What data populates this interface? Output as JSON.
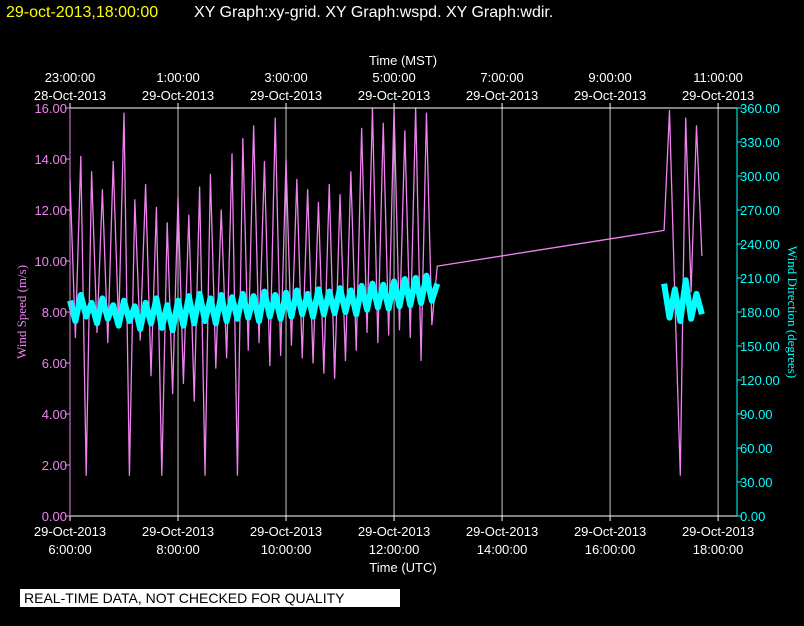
{
  "header": {
    "timestamp": "29-oct-2013,18:00:00",
    "graphs": "XY Graph:xy-grid.  XY Graph:wspd.  XY Graph:wdir."
  },
  "footer": "REAL-TIME DATA, NOT CHECKED FOR QUALITY",
  "chart_data": {
    "type": "line",
    "x_label": "Time (UTC)",
    "x2_label": "Time (MST)",
    "y_label": "Wind Speed (m/s)",
    "y2_label": "Wind Direction (degrees)",
    "xlim": [
      6,
      18.35
    ],
    "xticks": [
      {
        "value": 6,
        "label": [
          "29-Oct-2013",
          "6:00:00"
        ]
      },
      {
        "value": 8,
        "label": [
          "29-Oct-2013",
          "8:00:00"
        ]
      },
      {
        "value": 10,
        "label": [
          "29-Oct-2013",
          "10:00:00"
        ]
      },
      {
        "value": 12,
        "label": [
          "29-Oct-2013",
          "12:00:00"
        ]
      },
      {
        "value": 14,
        "label": [
          "29-Oct-2013",
          "14:00:00"
        ]
      },
      {
        "value": 16,
        "label": [
          "29-Oct-2013",
          "16:00:00"
        ]
      },
      {
        "value": 18,
        "label": [
          "29-Oct-2013",
          "18:00:00"
        ]
      }
    ],
    "x2ticks": [
      {
        "value": 6,
        "label": [
          "23:00:00",
          "28-Oct-2013"
        ]
      },
      {
        "value": 8,
        "label": [
          "1:00:00",
          "29-Oct-2013"
        ]
      },
      {
        "value": 10,
        "label": [
          "3:00:00",
          "29-Oct-2013"
        ]
      },
      {
        "value": 12,
        "label": [
          "5:00:00",
          "29-Oct-2013"
        ]
      },
      {
        "value": 14,
        "label": [
          "7:00:00",
          "29-Oct-2013"
        ]
      },
      {
        "value": 16,
        "label": [
          "9:00:00",
          "29-Oct-2013"
        ]
      },
      {
        "value": 18,
        "label": [
          "11:00:00",
          "29-Oct-2013"
        ]
      }
    ],
    "ylim": [
      0,
      16
    ],
    "yticks": [
      {
        "value": 0,
        "label": "0.00"
      },
      {
        "value": 2,
        "label": "2.00"
      },
      {
        "value": 4,
        "label": "4.00"
      },
      {
        "value": 6,
        "label": "6.00"
      },
      {
        "value": 8,
        "label": "8.00"
      },
      {
        "value": 10,
        "label": "10.00"
      },
      {
        "value": 12,
        "label": "12.00"
      },
      {
        "value": 14,
        "label": "14.00"
      },
      {
        "value": 16,
        "label": "16.00"
      }
    ],
    "y2lim": [
      0,
      360
    ],
    "y2ticks": [
      {
        "value": 0,
        "label": "0.00"
      },
      {
        "value": 30,
        "label": "30.00"
      },
      {
        "value": 60,
        "label": "60.00"
      },
      {
        "value": 90,
        "label": "90.00"
      },
      {
        "value": 120,
        "label": "120.00"
      },
      {
        "value": 150,
        "label": "150.00"
      },
      {
        "value": 180,
        "label": "180.00"
      },
      {
        "value": 210,
        "label": "210.00"
      },
      {
        "value": 240,
        "label": "240.00"
      },
      {
        "value": 270,
        "label": "270.00"
      },
      {
        "value": 300,
        "label": "300.00"
      },
      {
        "value": 330,
        "label": "330.00"
      },
      {
        "value": 360,
        "label": "360.00"
      }
    ],
    "grid": true,
    "series": [
      {
        "name": "wspd",
        "color": "#ee82ee",
        "x": [
          6.0,
          6.1,
          6.2,
          6.3,
          6.4,
          6.5,
          6.6,
          6.7,
          6.8,
          6.9,
          7.0,
          7.1,
          7.2,
          7.3,
          7.4,
          7.5,
          7.6,
          7.7,
          7.8,
          7.9,
          8.0,
          8.1,
          8.2,
          8.3,
          8.4,
          8.5,
          8.6,
          8.7,
          8.8,
          8.9,
          9.0,
          9.1,
          9.2,
          9.3,
          9.4,
          9.5,
          9.6,
          9.7,
          9.8,
          9.9,
          10.0,
          10.1,
          10.2,
          10.3,
          10.4,
          10.5,
          10.6,
          10.7,
          10.8,
          10.9,
          11.0,
          11.1,
          11.2,
          11.3,
          11.4,
          11.5,
          11.6,
          11.7,
          11.8,
          11.9,
          12.0,
          12.1,
          12.2,
          12.3,
          12.4,
          12.5,
          12.6,
          12.7,
          12.8,
          17.0,
          17.1,
          17.2,
          17.3,
          17.4,
          17.5,
          17.6,
          17.7
        ],
        "values": [
          13.2,
          7.0,
          14.1,
          1.6,
          13.5,
          7.2,
          12.8,
          6.8,
          13.9,
          7.4,
          15.8,
          1.6,
          12.4,
          6.9,
          13.0,
          5.5,
          12.1,
          1.6,
          11.5,
          4.8,
          12.5,
          5.2,
          11.8,
          4.5,
          12.9,
          1.6,
          13.4,
          5.8,
          12.0,
          6.2,
          14.2,
          1.6,
          14.8,
          6.5,
          15.3,
          6.8,
          13.9,
          5.9,
          15.6,
          6.3,
          14.0,
          6.7,
          13.2,
          6.2,
          12.8,
          6.0,
          12.3,
          5.6,
          13.0,
          5.4,
          12.6,
          6.1,
          13.5,
          6.5,
          15.2,
          7.2,
          16.0,
          6.8,
          15.4,
          7.1,
          16.0,
          7.3,
          15.1,
          7.0,
          16.0,
          6.1,
          15.8,
          7.5,
          9.8,
          11.2,
          15.9,
          8.5,
          1.6,
          15.6,
          8.8,
          15.3,
          10.2
        ]
      },
      {
        "name": "wdir",
        "color": "#00ffff",
        "axis": "y2",
        "x": [
          6.0,
          6.1,
          6.2,
          6.3,
          6.4,
          6.5,
          6.6,
          6.7,
          6.8,
          6.9,
          7.0,
          7.1,
          7.2,
          7.3,
          7.4,
          7.5,
          7.6,
          7.7,
          7.8,
          7.9,
          8.0,
          8.1,
          8.2,
          8.3,
          8.4,
          8.5,
          8.6,
          8.7,
          8.8,
          8.9,
          9.0,
          9.1,
          9.2,
          9.3,
          9.4,
          9.5,
          9.6,
          9.7,
          9.8,
          9.9,
          10.0,
          10.1,
          10.2,
          10.3,
          10.4,
          10.5,
          10.6,
          10.7,
          10.8,
          10.9,
          11.0,
          11.1,
          11.2,
          11.3,
          11.4,
          11.5,
          11.6,
          11.7,
          11.8,
          11.9,
          12.0,
          12.1,
          12.2,
          12.3,
          12.4,
          12.5,
          12.6,
          12.7,
          12.8,
          null,
          17.0,
          17.1,
          17.2,
          17.3,
          17.4,
          17.5,
          17.6,
          17.7
        ],
        "values": [
          190,
          172,
          195,
          176,
          188,
          170,
          192,
          174,
          186,
          168,
          190,
          172,
          185,
          165,
          188,
          170,
          192,
          166,
          186,
          164,
          190,
          168,
          194,
          170,
          196,
          172,
          192,
          170,
          195,
          172,
          193,
          174,
          196,
          175,
          194,
          172,
          198,
          176,
          195,
          174,
          197,
          176,
          199,
          178,
          196,
          176,
          200,
          178,
          198,
          179,
          201,
          180,
          199,
          178,
          203,
          182,
          205,
          184,
          204,
          183,
          207,
          185,
          209,
          186,
          210,
          188,
          212,
          190,
          205,
          null,
          205,
          175,
          200,
          172,
          208,
          174,
          196,
          178
        ]
      }
    ]
  }
}
